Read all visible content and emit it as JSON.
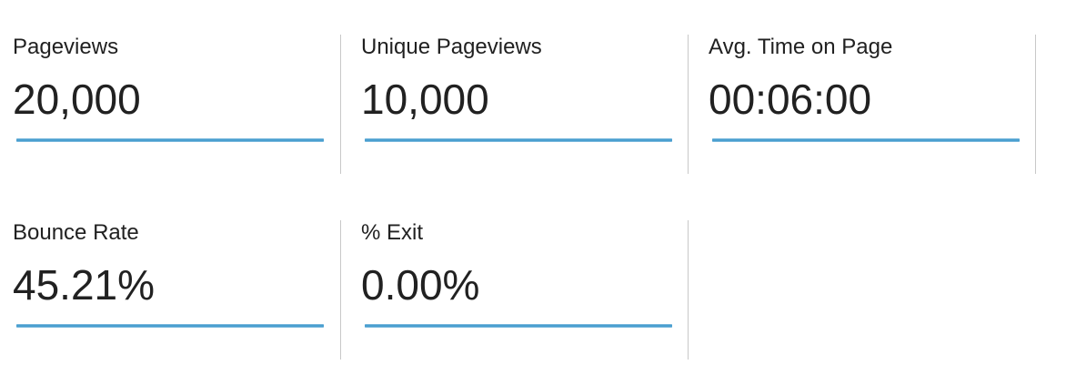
{
  "accent_color": "#4a9fd0",
  "metrics": [
    {
      "label": "Pageviews",
      "value": "20,000"
    },
    {
      "label": "Unique Pageviews",
      "value": "10,000"
    },
    {
      "label": "Avg. Time on Page",
      "value": "00:06:00"
    },
    {
      "label": "Bounce Rate",
      "value": "45.21%"
    },
    {
      "label": "% Exit",
      "value": "0.00%"
    }
  ]
}
